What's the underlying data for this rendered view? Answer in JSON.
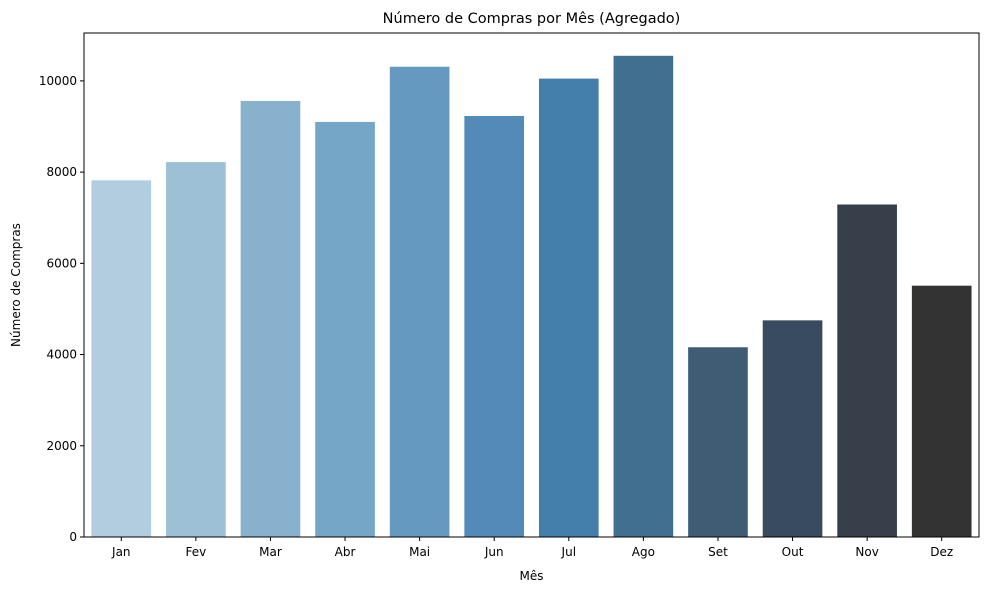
{
  "chart_data": {
    "type": "bar",
    "title": "Número de Compras por Mês (Agregado)",
    "xlabel": "Mês",
    "ylabel": "Número de Compras",
    "categories": [
      "Jan",
      "Fev",
      "Mar",
      "Abr",
      "Mai",
      "Jun",
      "Jul",
      "Ago",
      "Set",
      "Out",
      "Nov",
      "Dez"
    ],
    "values": [
      7820,
      8220,
      9560,
      9100,
      10310,
      9230,
      10050,
      10550,
      4160,
      4750,
      7290,
      5510
    ],
    "colors": [
      "#b2cde0",
      "#9dc0d6",
      "#87b1cd",
      "#75a5c7",
      "#6599bf",
      "#528bb7",
      "#447eab",
      "#416f8f",
      "#3f5c74",
      "#394b5e",
      "#363f4a",
      "#333333"
    ],
    "ylim": [
      0,
      11050
    ],
    "yticks": [
      0,
      2000,
      4000,
      6000,
      8000,
      10000
    ],
    "grid": false
  }
}
